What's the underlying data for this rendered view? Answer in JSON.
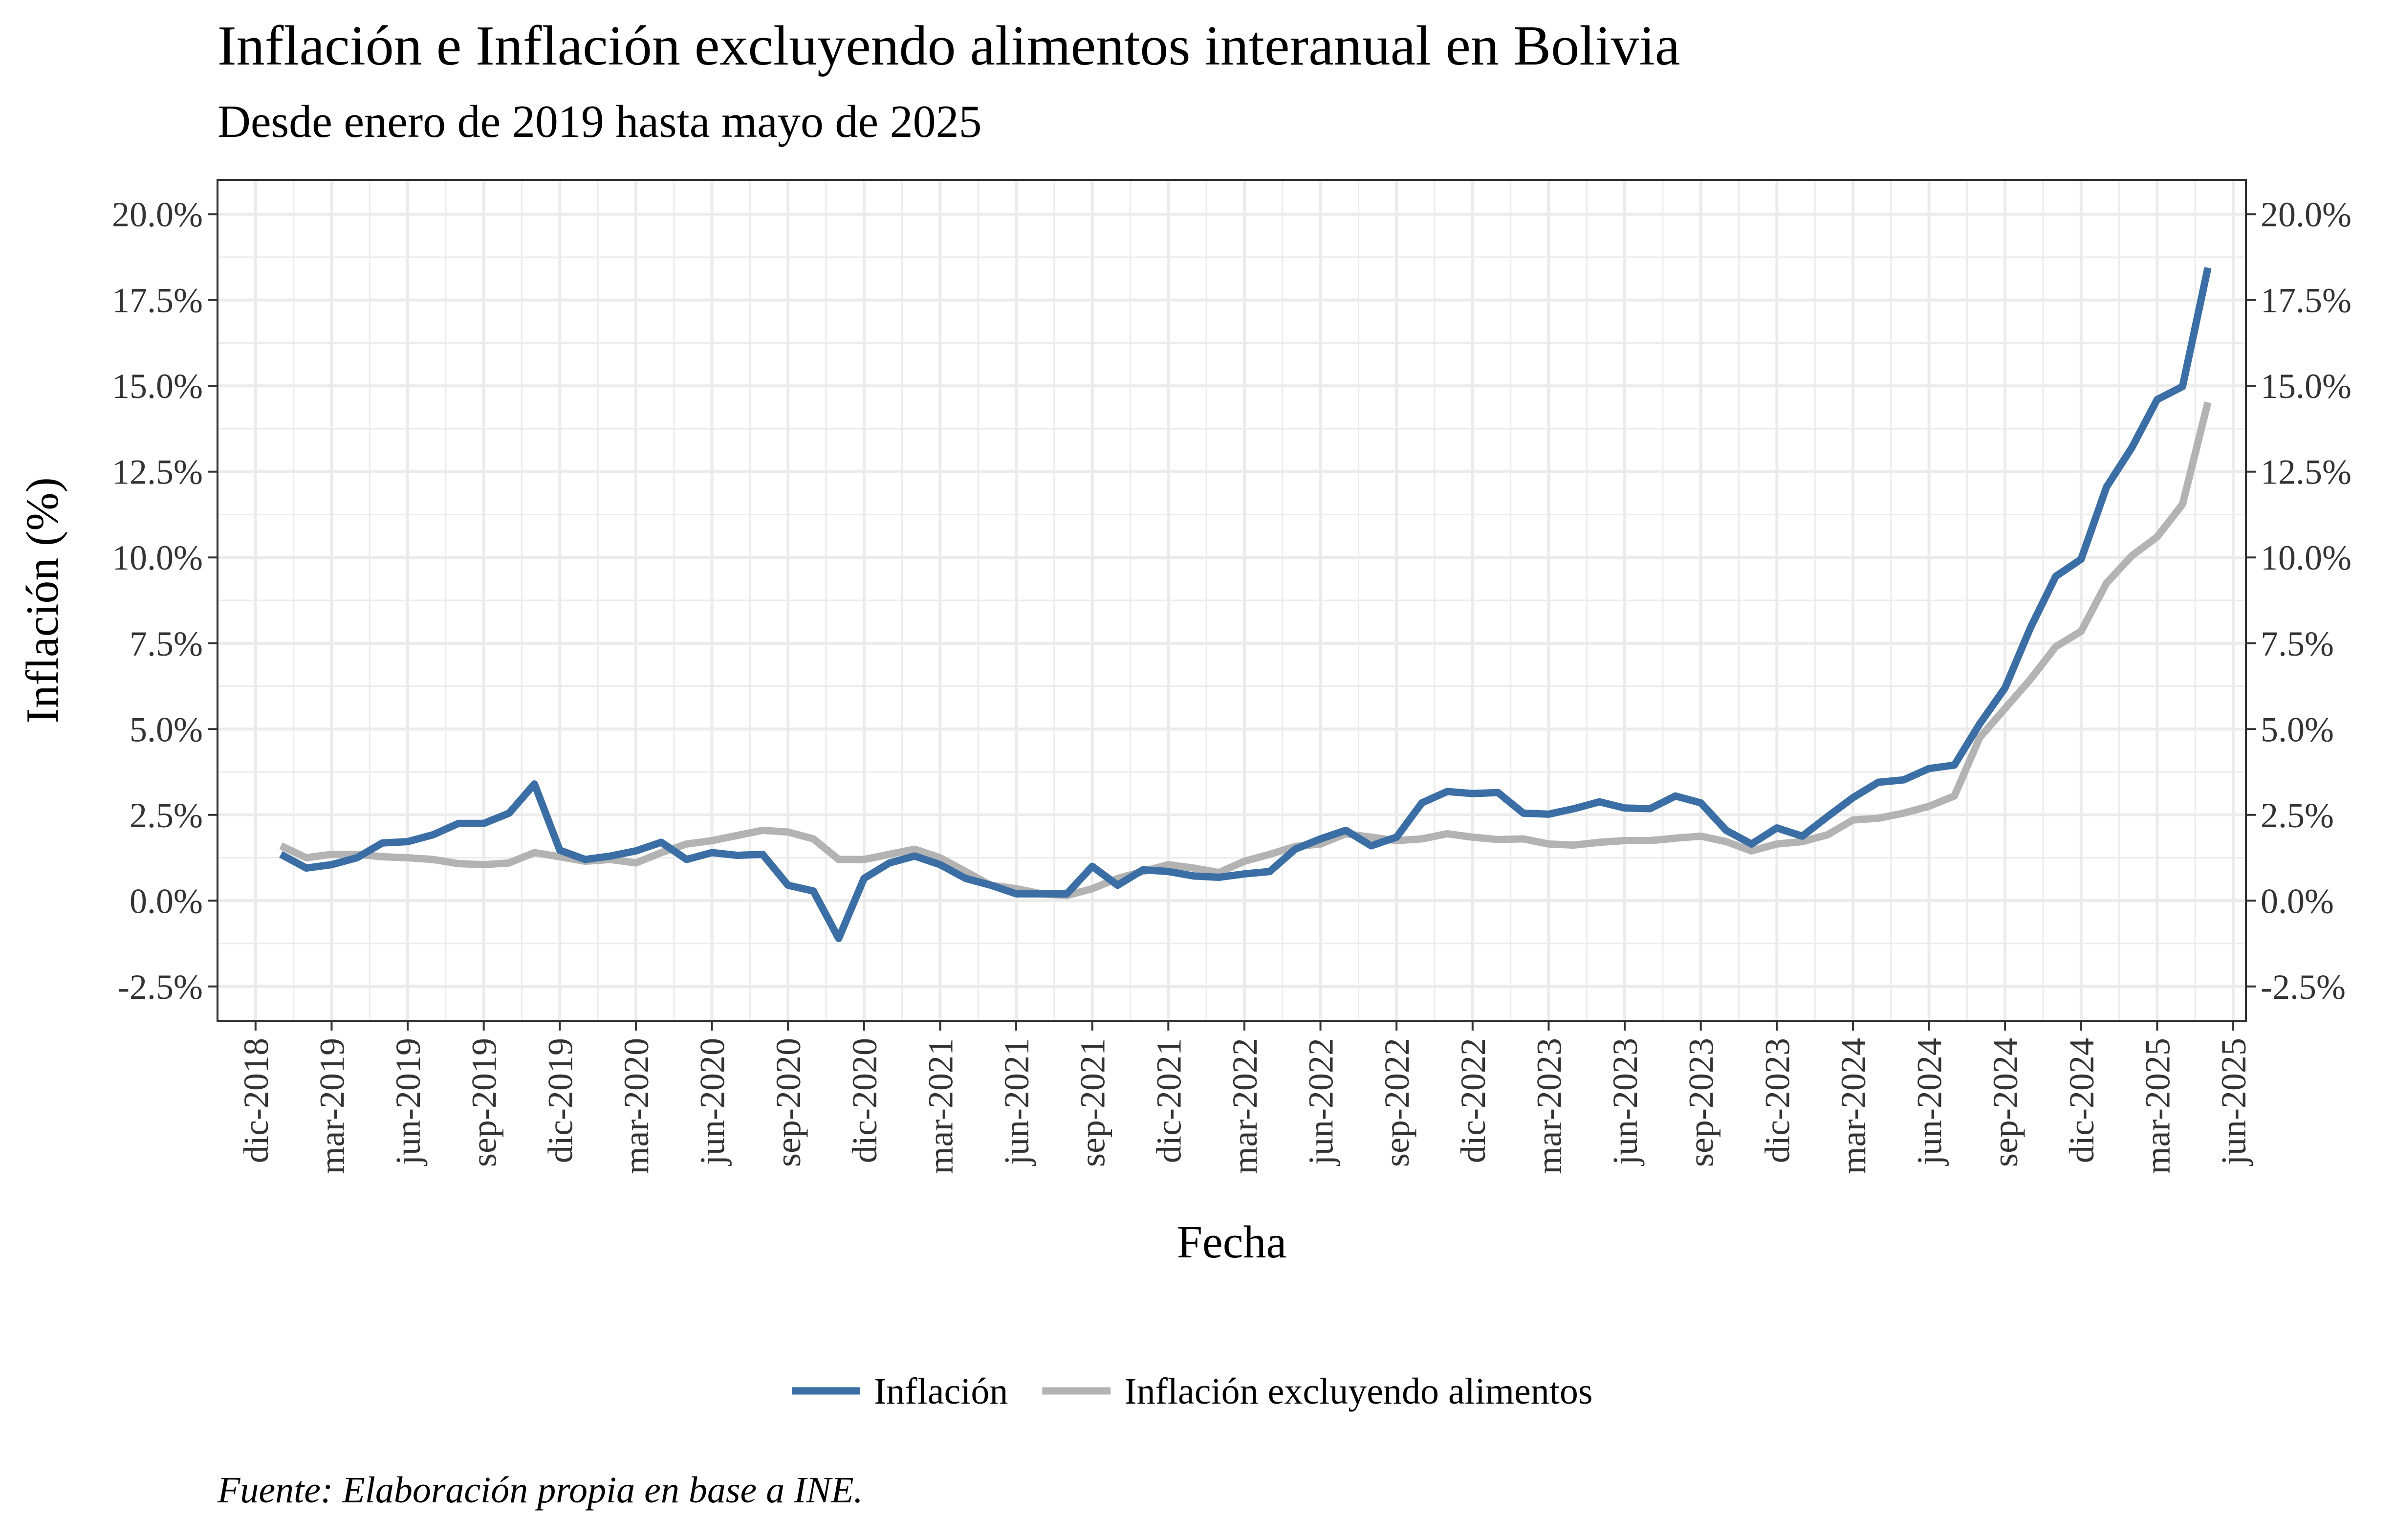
{
  "title": "Inflación e Inflación excluyendo alimentos interanual en Bolivia",
  "subtitle": "Desde enero de 2019 hasta mayo de 2025",
  "caption": "Fuente: Elaboración propia en base a INE.",
  "colors": {
    "inflacion": "#3a6ea5",
    "sin_alimentos": "#b3b3b3",
    "grid": "#ebebeb",
    "panel_border": "#333333"
  },
  "chart_data": {
    "type": "line",
    "xlabel": "Fecha",
    "ylabel": "Inflación (%)",
    "ylim": [
      -3.5,
      21.0
    ],
    "y_ticks": [
      -2.5,
      0.0,
      2.5,
      5.0,
      7.5,
      10.0,
      12.5,
      15.0,
      17.5,
      20.0
    ],
    "y_tick_labels": [
      "-2.5%",
      "0.0%",
      "2.5%",
      "5.0%",
      "7.5%",
      "10.0%",
      "12.5%",
      "15.0%",
      "17.5%",
      "20.0%"
    ],
    "secondary_y_axis": true,
    "x_ticks": [
      "2018-12",
      "2019-03",
      "2019-06",
      "2019-09",
      "2019-12",
      "2020-03",
      "2020-06",
      "2020-09",
      "2020-12",
      "2021-03",
      "2021-06",
      "2021-09",
      "2021-12",
      "2022-03",
      "2022-06",
      "2022-09",
      "2022-12",
      "2023-03",
      "2023-06",
      "2023-09",
      "2023-12",
      "2024-03",
      "2024-06",
      "2024-09",
      "2024-12",
      "2025-03",
      "2025-06"
    ],
    "x_tick_labels": [
      "dic-2018",
      "mar-2019",
      "jun-2019",
      "sep-2019",
      "dic-2019",
      "mar-2020",
      "jun-2020",
      "sep-2020",
      "dic-2020",
      "mar-2021",
      "jun-2021",
      "sep-2021",
      "dic-2021",
      "mar-2022",
      "jun-2022",
      "sep-2022",
      "dic-2022",
      "mar-2023",
      "jun-2023",
      "sep-2023",
      "dic-2023",
      "mar-2024",
      "jun-2024",
      "sep-2024",
      "dic-2024",
      "mar-2025",
      "jun-2025"
    ],
    "legend_position": "bottom",
    "grid": true,
    "x": [
      "2019-01",
      "2019-02",
      "2019-03",
      "2019-04",
      "2019-05",
      "2019-06",
      "2019-07",
      "2019-08",
      "2019-09",
      "2019-10",
      "2019-11",
      "2019-12",
      "2020-01",
      "2020-02",
      "2020-03",
      "2020-04",
      "2020-05",
      "2020-06",
      "2020-07",
      "2020-08",
      "2020-09",
      "2020-10",
      "2020-11",
      "2020-12",
      "2021-01",
      "2021-02",
      "2021-03",
      "2021-04",
      "2021-05",
      "2021-06",
      "2021-07",
      "2021-08",
      "2021-09",
      "2021-10",
      "2021-11",
      "2021-12",
      "2022-01",
      "2022-02",
      "2022-03",
      "2022-04",
      "2022-05",
      "2022-06",
      "2022-07",
      "2022-08",
      "2022-09",
      "2022-10",
      "2022-11",
      "2022-12",
      "2023-01",
      "2023-02",
      "2023-03",
      "2023-04",
      "2023-05",
      "2023-06",
      "2023-07",
      "2023-08",
      "2023-09",
      "2023-10",
      "2023-11",
      "2023-12",
      "2024-01",
      "2024-02",
      "2024-03",
      "2024-04",
      "2024-05",
      "2024-06",
      "2024-07",
      "2024-08",
      "2024-09",
      "2024-10",
      "2024-11",
      "2024-12",
      "2025-01",
      "2025-02",
      "2025-03",
      "2025-04",
      "2025-05"
    ],
    "series": [
      {
        "name": "Inflación",
        "color": "#3a6ea5",
        "values": [
          1.35,
          0.95,
          1.05,
          1.25,
          1.68,
          1.72,
          1.92,
          2.25,
          2.25,
          2.55,
          3.4,
          1.47,
          1.2,
          1.3,
          1.45,
          1.7,
          1.2,
          1.4,
          1.32,
          1.35,
          0.45,
          0.28,
          -1.1,
          0.65,
          1.1,
          1.3,
          1.05,
          0.65,
          0.45,
          0.2,
          0.2,
          0.2,
          1.0,
          0.45,
          0.9,
          0.85,
          0.72,
          0.68,
          0.78,
          0.85,
          1.5,
          1.8,
          2.05,
          1.6,
          1.85,
          2.85,
          3.18,
          3.12,
          3.15,
          2.55,
          2.52,
          2.68,
          2.88,
          2.7,
          2.68,
          3.05,
          2.85,
          2.05,
          1.65,
          2.12,
          1.88,
          2.45,
          3.0,
          3.45,
          3.52,
          3.85,
          3.95,
          5.15,
          6.2,
          7.95,
          9.45,
          9.95,
          12.05,
          13.2,
          14.6,
          14.98,
          18.44
        ]
      },
      {
        "name": "Inflación excluyendo alimentos",
        "color": "#b3b3b3",
        "values": [
          1.6,
          1.25,
          1.35,
          1.35,
          1.28,
          1.25,
          1.2,
          1.08,
          1.05,
          1.1,
          1.4,
          1.28,
          1.15,
          1.2,
          1.1,
          1.4,
          1.65,
          1.75,
          1.9,
          2.05,
          2.0,
          1.8,
          1.2,
          1.2,
          1.35,
          1.5,
          1.25,
          0.85,
          0.45,
          0.35,
          0.2,
          0.15,
          0.35,
          0.65,
          0.85,
          1.05,
          0.95,
          0.82,
          1.15,
          1.35,
          1.58,
          1.65,
          1.95,
          1.85,
          1.75,
          1.8,
          1.95,
          1.85,
          1.78,
          1.8,
          1.65,
          1.62,
          1.7,
          1.75,
          1.75,
          1.82,
          1.88,
          1.72,
          1.45,
          1.65,
          1.72,
          1.92,
          2.35,
          2.4,
          2.55,
          2.75,
          3.05,
          4.75,
          5.6,
          6.45,
          7.4,
          7.85,
          9.25,
          10.05,
          10.6,
          11.55,
          14.52
        ]
      }
    ]
  }
}
